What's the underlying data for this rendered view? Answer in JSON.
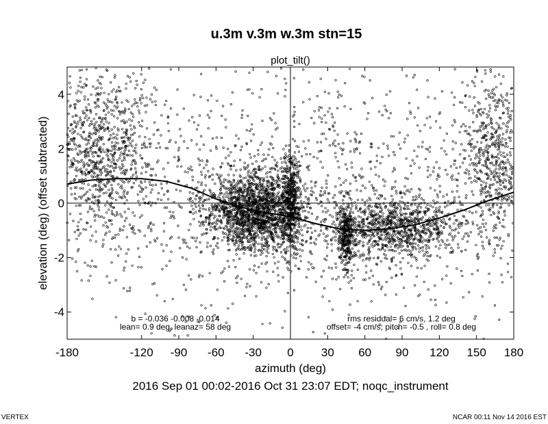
{
  "title": "u.3m v.3m w.3m stn=15",
  "subtitle": "plot_tilt()",
  "date_line": "2016 Sep 01 00:02-2016 Oct 31 23:07 EDT; noqc_instrument",
  "footer_left": "VERTEX",
  "footer_right": "NCAR 00:11 Nov 14 2016 EST",
  "annotations": {
    "left_line1": "b = -0.036 -0.008 -0.014",
    "left_line2": "lean= 0.9 deg, leanaz= 58 deg",
    "right_line1": "rms residual= 6 cm/s, 1.2 deg",
    "right_line2": "offset= -4 cm/s; pitch= -0.5 , roll= 0.8 deg"
  },
  "chart_data": {
    "type": "scatter",
    "xlabel": "azimuth (deg)",
    "ylabel": "elevation (deg)   (offset subtracted)",
    "xlim": [
      -180,
      180
    ],
    "ylim": [
      -5,
      5
    ],
    "x_ticks": [
      -180,
      -120,
      -90,
      -60,
      -30,
      0,
      30,
      60,
      90,
      120,
      150,
      180
    ],
    "x_tick_labels": [
      "-180",
      "-120",
      "-90",
      "-60",
      "-30",
      "0",
      "30",
      "60",
      "90",
      "120",
      "150",
      "180"
    ],
    "y_ticks": [
      -4,
      -2,
      0,
      2,
      4
    ],
    "y_tick_labels": [
      "-4",
      "-2",
      "0",
      "2",
      "4"
    ],
    "grid": false,
    "zero_lines": true,
    "fit_curve": {
      "x": [
        -180,
        -160,
        -140,
        -120,
        -100,
        -80,
        -60,
        -40,
        -20,
        0,
        20,
        40,
        60,
        80,
        100,
        120,
        140,
        160,
        180
      ],
      "y": [
        0.7,
        0.85,
        0.9,
        0.9,
        0.8,
        0.55,
        0.15,
        -0.15,
        -0.35,
        -0.5,
        -0.75,
        -0.95,
        -1.0,
        -0.95,
        -0.8,
        -0.55,
        -0.25,
        0.1,
        0.4
      ]
    },
    "point_clusters": [
      {
        "x_center": -155,
        "x_spread": 22,
        "y_center": 1.8,
        "y_spread": 1.5,
        "count": 900
      },
      {
        "x_center": -30,
        "x_spread": 18,
        "y_center": -0.3,
        "y_spread": 0.7,
        "count": 1700
      },
      {
        "x_center": 0,
        "x_spread": 4,
        "y_center": 0.0,
        "y_spread": 0.9,
        "count": 500
      },
      {
        "x_center": 45,
        "x_spread": 3,
        "y_center": -1.2,
        "y_spread": 0.6,
        "count": 350
      },
      {
        "x_center": 85,
        "x_spread": 25,
        "y_center": -0.9,
        "y_spread": 0.55,
        "count": 900
      },
      {
        "x_center": 165,
        "x_spread": 14,
        "y_center": 1.5,
        "y_spread": 1.6,
        "count": 600
      },
      {
        "x_center": 0,
        "x_spread": 110,
        "y_center": 0.3,
        "y_spread": 2.2,
        "count": 1600
      }
    ]
  }
}
